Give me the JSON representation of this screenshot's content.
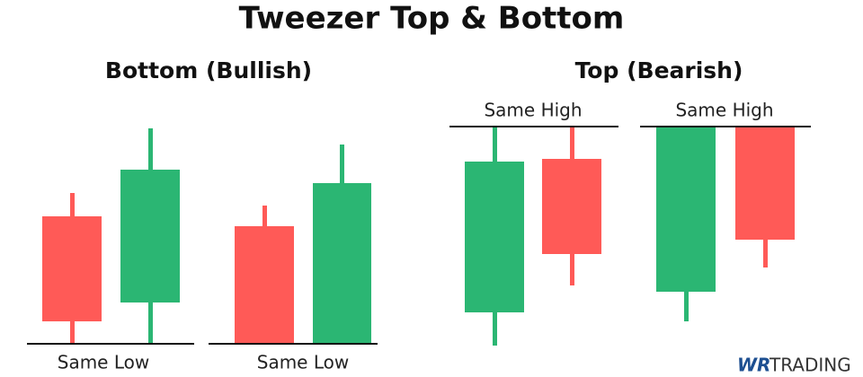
{
  "header": {
    "title": "Tweezer Top & Bottom"
  },
  "sections": [
    {
      "title": "Bottom (Bullish)",
      "labels": [
        "Same Low",
        "Same Low"
      ]
    },
    {
      "title": "Top (Bearish)",
      "labels": [
        "Same High",
        "Same High"
      ]
    }
  ],
  "logo": {
    "mark": "WR",
    "text": "TRADING"
  }
}
